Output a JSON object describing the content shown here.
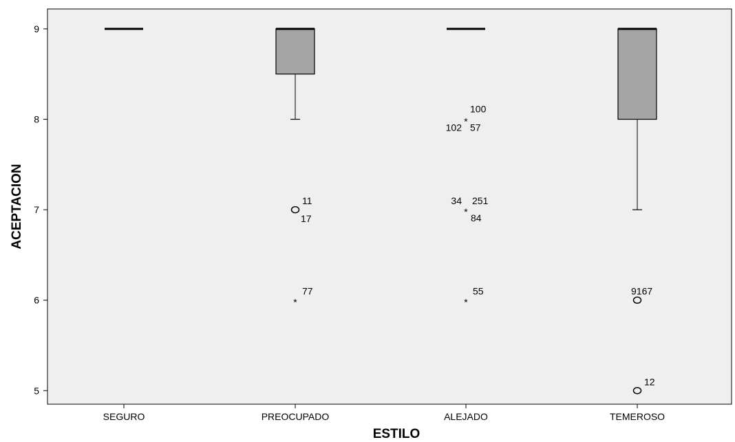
{
  "chart_data": {
    "type": "boxplot",
    "xlabel": "ESTILO",
    "ylabel": "ACEPTACION",
    "ylim": [
      4.85,
      9.22
    ],
    "yticks": [
      5,
      6,
      7,
      8,
      9
    ],
    "background_color": "#efefef",
    "box_color": "#a5a5a5",
    "categories": [
      "SEGURO",
      "PREOCUPADO",
      "ALEJADO",
      "TEMEROSO"
    ],
    "boxes": [
      {
        "category": "SEGURO",
        "whisker_low": 9,
        "q1": 9,
        "median": 9,
        "q3": 9,
        "whisker_high": 9,
        "outliers": []
      },
      {
        "category": "PREOCUPADO",
        "whisker_low": 8,
        "q1": 8.5,
        "median": 9,
        "q3": 9,
        "whisker_high": 9,
        "outliers": [
          {
            "value": 7,
            "marker": "circle",
            "labels": [
              "11",
              "17"
            ]
          },
          {
            "value": 6,
            "marker": "star",
            "labels": [
              "77"
            ]
          }
        ]
      },
      {
        "category": "ALEJADO",
        "whisker_low": 9,
        "q1": 9,
        "median": 9,
        "q3": 9,
        "whisker_high": 9,
        "outliers": [
          {
            "value": 8,
            "marker": "star",
            "labels": [
              "100",
              "102",
              "57"
            ]
          },
          {
            "value": 7,
            "marker": "star",
            "labels": [
              "34",
              "251",
              "84"
            ]
          },
          {
            "value": 6,
            "marker": "star",
            "labels": [
              "55"
            ]
          }
        ]
      },
      {
        "category": "TEMEROSO",
        "whisker_low": 7,
        "q1": 8,
        "median": 9,
        "q3": 9,
        "whisker_high": 9,
        "outliers": [
          {
            "value": 6,
            "marker": "circle",
            "labels": [
              "91",
              "67"
            ]
          },
          {
            "value": 5,
            "marker": "circle",
            "labels": [
              "12"
            ]
          }
        ]
      }
    ]
  }
}
